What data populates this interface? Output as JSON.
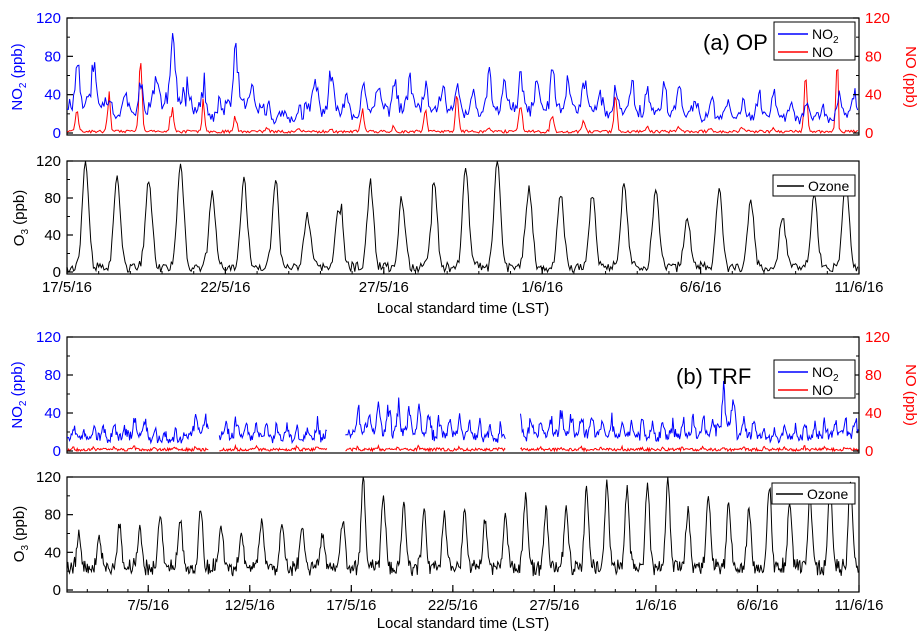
{
  "colors": {
    "no2": "#0000ff",
    "no": "#ff0000",
    "ozone": "#000000",
    "axis": "#000000"
  },
  "chart_data": [
    {
      "id": "a-top",
      "type": "line",
      "panel_label": "(a) OP",
      "xlabel": "",
      "ylabel": "NO2 (ppb)",
      "ylabel_right": "NO (ppb)",
      "xlim": [
        "2016-05-17",
        "2016-06-11"
      ],
      "ylim": [
        0,
        120
      ],
      "ylim_right": [
        0,
        120
      ],
      "yticks": [
        0,
        40,
        80,
        120
      ],
      "yticks_right": [
        0,
        40,
        80,
        120
      ],
      "legend": {
        "position": "top-right",
        "entries": [
          "NO2",
          "NO"
        ]
      },
      "series": [
        {
          "name": "NO2",
          "axis": "left",
          "color": "#0000ff",
          "amplitude": [
            72,
            75,
            38,
            45,
            65,
            90,
            55,
            30,
            78,
            50,
            25,
            22,
            55,
            55,
            40,
            50,
            55,
            58,
            45,
            50,
            40,
            55,
            55,
            55,
            60,
            58,
            55,
            40,
            52,
            45,
            50,
            35,
            30,
            35,
            30,
            40,
            32,
            28,
            25,
            40
          ]
        },
        {
          "name": "NO",
          "axis": "right",
          "color": "#ff0000",
          "amplitude": [
            30,
            60,
            40,
            85,
            40,
            30,
            38,
            25,
            18,
            5,
            4,
            3,
            3,
            3,
            30,
            40,
            5,
            30,
            20,
            35,
            30,
            5,
            35,
            40,
            25,
            12,
            15,
            35,
            45,
            5,
            5,
            5,
            5,
            5,
            5,
            5,
            5,
            60,
            65,
            8
          ]
        }
      ]
    },
    {
      "id": "a-bottom",
      "type": "line",
      "xlabel": "Local standard time (LST)",
      "ylabel": "O3 (ppb)",
      "xlim": [
        "2016-05-17",
        "2016-06-11"
      ],
      "ylim": [
        0,
        120
      ],
      "yticks": [
        0,
        40,
        80,
        120
      ],
      "xticks": [
        "2016-05-17",
        "2016-05-22",
        "2016-05-27",
        "2016-06-01",
        "2016-06-06",
        "2016-06-11"
      ],
      "xtick_labels": [
        "17/5/16",
        "22/5/16",
        "27/5/16",
        "1/6/16",
        "6/6/16",
        "11/6/16"
      ],
      "legend": {
        "position": "top-right",
        "entries": [
          "Ozone"
        ]
      },
      "series": [
        {
          "name": "Ozone",
          "color": "#000000",
          "daily_peak": [
            115,
            100,
            100,
            118,
            85,
            100,
            98,
            60,
            70,
            100,
            90,
            75,
            100,
            110,
            118,
            90,
            85,
            82,
            97,
            88,
            55,
            90,
            78,
            60,
            82,
            105
          ]
        }
      ]
    },
    {
      "id": "b-top",
      "type": "line",
      "panel_label": "(b) TRF",
      "xlabel": "",
      "ylabel": "NO2 (ppb)",
      "ylabel_right": "NO (ppb)",
      "xlim": [
        "2016-05-03",
        "2016-06-11"
      ],
      "ylim": [
        0,
        120
      ],
      "ylim_right": [
        0,
        120
      ],
      "yticks": [
        0,
        40,
        80,
        120
      ],
      "yticks_right": [
        0,
        40,
        80,
        120
      ],
      "legend": {
        "position": "top-right",
        "entries": [
          "NO2",
          "NO"
        ]
      },
      "gaps": [
        [
          "2016-05-10",
          "2016-05-10.5"
        ],
        [
          "2016-05-15.8",
          "2016-05-16.7"
        ],
        [
          "2016-05-24.6",
          "2016-05-25.3"
        ]
      ],
      "series": [
        {
          "name": "NO2",
          "axis": "left",
          "color": "#0000ff",
          "amplitude": [
            20,
            25,
            22,
            30,
            18,
            15,
            38,
            28,
            30,
            25,
            22,
            20,
            25,
            18,
            40,
            45,
            42,
            38,
            30,
            28,
            25,
            20,
            30,
            32,
            38,
            35,
            30,
            28,
            25,
            26,
            30,
            32,
            60,
            30,
            20,
            22,
            25,
            28,
            30
          ]
        },
        {
          "name": "NO",
          "axis": "right",
          "color": "#ff0000",
          "amplitude": [
            3,
            3,
            3,
            3,
            3,
            3,
            3,
            3,
            3,
            3,
            3,
            3,
            3,
            3,
            3,
            3,
            3,
            3,
            3,
            3,
            3,
            3,
            3,
            3,
            3,
            3,
            3,
            3,
            3,
            3,
            3,
            3,
            3,
            3,
            3,
            3,
            3,
            3,
            3
          ]
        }
      ]
    },
    {
      "id": "b-bottom",
      "type": "line",
      "xlabel": "Local standard time (LST)",
      "ylabel": "O3 (ppb)",
      "xlim": [
        "2016-05-03",
        "2016-06-11"
      ],
      "ylim": [
        0,
        120
      ],
      "yticks": [
        0,
        40,
        80,
        120
      ],
      "xticks": [
        "2016-05-07",
        "2016-05-12",
        "2016-05-17",
        "2016-05-22",
        "2016-05-27",
        "2016-06-01",
        "2016-06-06",
        "2016-06-11"
      ],
      "xtick_labels": [
        "7/5/16",
        "12/5/16",
        "17/5/16",
        "22/5/16",
        "27/5/16",
        "1/6/16",
        "6/6/16",
        "11/6/16"
      ],
      "legend": {
        "position": "top-right",
        "entries": [
          "Ozone"
        ]
      },
      "series": [
        {
          "name": "Ozone",
          "color": "#000000",
          "daily_peak": [
            60,
            55,
            70,
            65,
            80,
            75,
            85,
            70,
            60,
            75,
            70,
            65,
            60,
            75,
            118,
            100,
            95,
            85,
            80,
            85,
            75,
            80,
            100,
            85,
            90,
            108,
            115,
            110,
            112,
            118,
            85,
            100,
            95,
            85,
            110,
            90,
            100,
            115,
            118
          ]
        }
      ]
    }
  ]
}
